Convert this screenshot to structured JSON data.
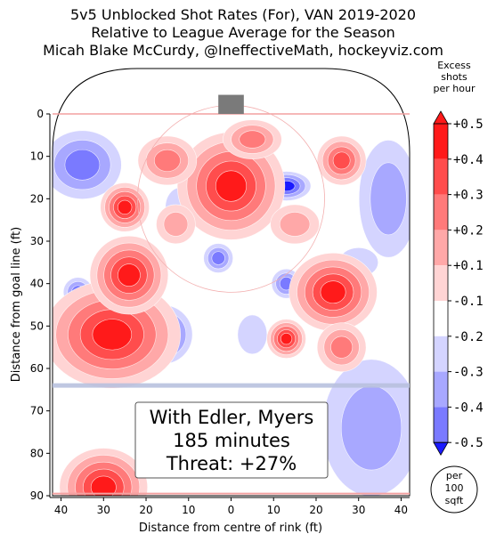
{
  "chart_data": {
    "type": "heatmap",
    "title": [
      "5v5 Unblocked Shot Rates (For), VAN 2019-2020",
      "Relative to League Average for the Season",
      "Micah Blake McCurdy, @IneffectiveMath, hockeyviz.com"
    ],
    "xlabel": "Distance from centre of rink (ft)",
    "ylabel": "Distance from goal line (ft)",
    "x_ticks": [
      "40",
      "30",
      "20",
      "10",
      "0",
      "10",
      "20",
      "30",
      "40"
    ],
    "y_ticks": [
      "0",
      "10",
      "20",
      "30",
      "40",
      "50",
      "60",
      "70",
      "80",
      "90"
    ],
    "xlim": [
      -42,
      42
    ],
    "ylim": [
      0,
      90
    ],
    "colorbar": {
      "title": [
        "Excess",
        "shots",
        "per hour"
      ],
      "labels": [
        "+0.5",
        "+0.4",
        "+0.3",
        "+0.2",
        "+0.1",
        "-0.1",
        "-0.2",
        "-0.3",
        "-0.4",
        "-0.5"
      ],
      "colors": [
        "#ff1a1a",
        "#ff4d4d",
        "#ff7a7a",
        "#ffa8a8",
        "#ffd4d4",
        "#ffffff",
        "#d4d4ff",
        "#a8a8ff",
        "#7a7aff",
        "#1a1aff"
      ]
    },
    "unit_note": [
      "per",
      "100",
      "sqft"
    ],
    "annotation": [
      "With Edler, Myers",
      "185 minutes",
      "Threat: +27%"
    ],
    "hotspots": [
      {
        "x": -28,
        "y": 52,
        "value": 0.5,
        "rx": 14,
        "ry": 11
      },
      {
        "x": -24,
        "y": 38,
        "value": 0.5,
        "rx": 8,
        "ry": 8
      },
      {
        "x": 0,
        "y": 17,
        "value": 0.5,
        "rx": 11,
        "ry": 11
      },
      {
        "x": 24,
        "y": 42,
        "value": 0.5,
        "rx": 9,
        "ry": 8
      },
      {
        "x": -25,
        "y": 22,
        "value": 0.45,
        "rx": 5,
        "ry": 5
      },
      {
        "x": -15,
        "y": 11,
        "value": 0.3,
        "rx": 6,
        "ry": 5
      },
      {
        "x": 26,
        "y": 11,
        "value": 0.4,
        "rx": 5,
        "ry": 5
      },
      {
        "x": 13,
        "y": 53,
        "value": 0.45,
        "rx": 4,
        "ry": 4
      },
      {
        "x": 26,
        "y": 55,
        "value": 0.25,
        "rx": 5,
        "ry": 5
      },
      {
        "x": -30,
        "y": 88,
        "value": 0.5,
        "rx": 9,
        "ry": 8
      },
      {
        "x": 15,
        "y": 26,
        "value": 0.2,
        "rx": 5,
        "ry": 4
      },
      {
        "x": 5,
        "y": 6,
        "value": 0.25,
        "rx": 6,
        "ry": 4
      },
      {
        "x": -13,
        "y": 26,
        "value": 0.2,
        "rx": 4,
        "ry": 4
      }
    ],
    "coldspots": [
      {
        "x": -35,
        "y": 12,
        "value": -0.25,
        "rx": 8,
        "ry": 7
      },
      {
        "x": 37,
        "y": 20,
        "value": -0.2,
        "rx": 6,
        "ry": 12
      },
      {
        "x": -16,
        "y": 52,
        "value": -0.4,
        "rx": 6,
        "ry": 6
      },
      {
        "x": 13,
        "y": 17,
        "value": -0.4,
        "rx": 5,
        "ry": 3
      },
      {
        "x": -3,
        "y": 34,
        "value": -0.3,
        "rx": 3,
        "ry": 3
      },
      {
        "x": -36,
        "y": 42,
        "value": -0.25,
        "rx": 3,
        "ry": 3
      },
      {
        "x": 13,
        "y": 40,
        "value": -0.3,
        "rx": 3,
        "ry": 3
      },
      {
        "x": 33,
        "y": 74,
        "value": -0.2,
        "rx": 10,
        "ry": 14
      },
      {
        "x": -12,
        "y": 22,
        "value": -0.15,
        "rx": 3,
        "ry": 4
      },
      {
        "x": 30,
        "y": 35,
        "value": -0.15,
        "rx": 4,
        "ry": 3
      },
      {
        "x": 5,
        "y": 52,
        "value": -0.15,
        "rx": 3,
        "ry": 4
      }
    ]
  }
}
